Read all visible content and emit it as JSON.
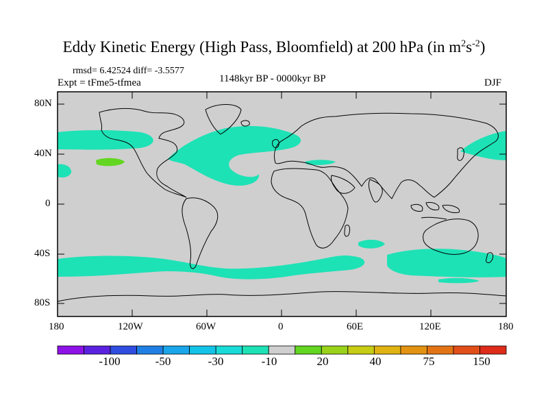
{
  "title": {
    "main": "Eddy Kinetic Energy (High Pass, Bloomfield) at 200 hPa (in m",
    "sup1": "2",
    "mid": "s",
    "sup2": "-2",
    "end": ")"
  },
  "stats": "rmsd= 6.42524 diff= -3.5577",
  "expt": "Expt = tFme5-tfmea",
  "period": "1148kyr BP - 0000kyr BP",
  "season": "DJF",
  "map": {
    "lat_ticks": [
      "80N",
      "40N",
      "0",
      "40S",
      "80S"
    ],
    "lon_ticks": [
      "180",
      "120W",
      "60W",
      "0",
      "60E",
      "120E",
      "180"
    ]
  },
  "legend": {
    "colors": [
      "#8d12e8",
      "#5a22e0",
      "#2f4de0",
      "#1f7fe4",
      "#1aa6ea",
      "#13c4e8",
      "#19dcd8",
      "#1de2b6",
      "#cfcfcf",
      "#62d620",
      "#9ad21a",
      "#c7cc14",
      "#e0b312",
      "#e39212",
      "#e37415",
      "#e24e18",
      "#de2b1a"
    ],
    "labels": [
      "-100",
      "-50",
      "-30",
      "-10",
      "20",
      "40",
      "75",
      "150"
    ]
  },
  "colors": {
    "land_sea_background": "#cfcfcf",
    "negative_fill": "#1de2b6",
    "positive_fill": "#62d620"
  }
}
